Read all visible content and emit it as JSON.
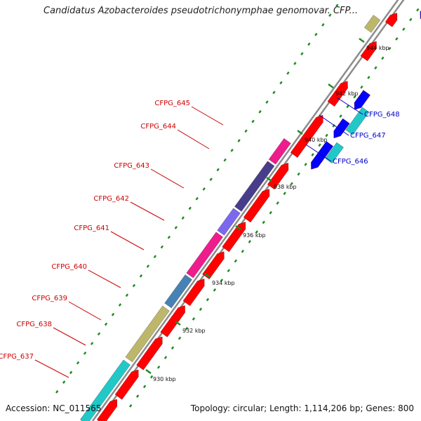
{
  "title": "Candidatus Azobacteroides pseudotrichonymphae genomovar. CFP...",
  "footer": {
    "accession": "Accession: NC_011565",
    "stats": "Topology: circular; Length: 1,114,206 bp; Genes: 800"
  },
  "ticks": [
    {
      "label": "930 kbp"
    },
    {
      "label": "932 kbp"
    },
    {
      "label": "934 kbp"
    },
    {
      "label": "936 kbp"
    },
    {
      "label": "938 kbp"
    },
    {
      "label": "940 kbp"
    },
    {
      "label": "942 kbp"
    },
    {
      "label": "944 kbp"
    }
  ],
  "colors": {
    "forward": "#ff0000",
    "reverse": "#0000ff",
    "backbone": "#8c8c8c",
    "dots": "#228b22",
    "label_forward": "#cc0000",
    "label_reverse": "#0000cc"
  },
  "forward_features": [
    {
      "name": "teal-a",
      "color": "#20c8c8"
    },
    {
      "name": "olive",
      "color": "#bdb76b"
    },
    {
      "name": "steelblue",
      "color": "#4682b4"
    },
    {
      "name": "magenta-a",
      "color": "#ee1c8c"
    },
    {
      "name": "slateblue",
      "color": "#7b68ee"
    },
    {
      "name": "darkslateblue",
      "color": "#483d8b"
    },
    {
      "name": "magenta-b",
      "color": "#ee1c8c"
    },
    {
      "name": "olive-top",
      "color": "#bdb76b"
    }
  ],
  "reverse_features": [
    {
      "name": "cyan-a",
      "color": "#20c8c8"
    },
    {
      "name": "cyan-b",
      "color": "#20c8c8"
    },
    {
      "name": "lightsteel",
      "color": "#b0b0f0"
    },
    {
      "name": "deepsky",
      "color": "#00bfff"
    }
  ],
  "gene_labels": [
    {
      "text": "CFPG_645",
      "strand": "forward"
    },
    {
      "text": "CFPG_644",
      "strand": "forward"
    },
    {
      "text": "CFPG_643",
      "strand": "forward"
    },
    {
      "text": "CFPG_642",
      "strand": "forward"
    },
    {
      "text": "CFPG_641",
      "strand": "forward"
    },
    {
      "text": "CFPG_640",
      "strand": "forward"
    },
    {
      "text": "CFPG_639",
      "strand": "forward"
    },
    {
      "text": "CFPG_638",
      "strand": "forward"
    },
    {
      "text": "CFPG_637",
      "strand": "forward"
    },
    {
      "text": "CFPG_648",
      "strand": "reverse"
    },
    {
      "text": "CFPG_647",
      "strand": "reverse"
    },
    {
      "text": "CFPG_646",
      "strand": "reverse"
    }
  ]
}
